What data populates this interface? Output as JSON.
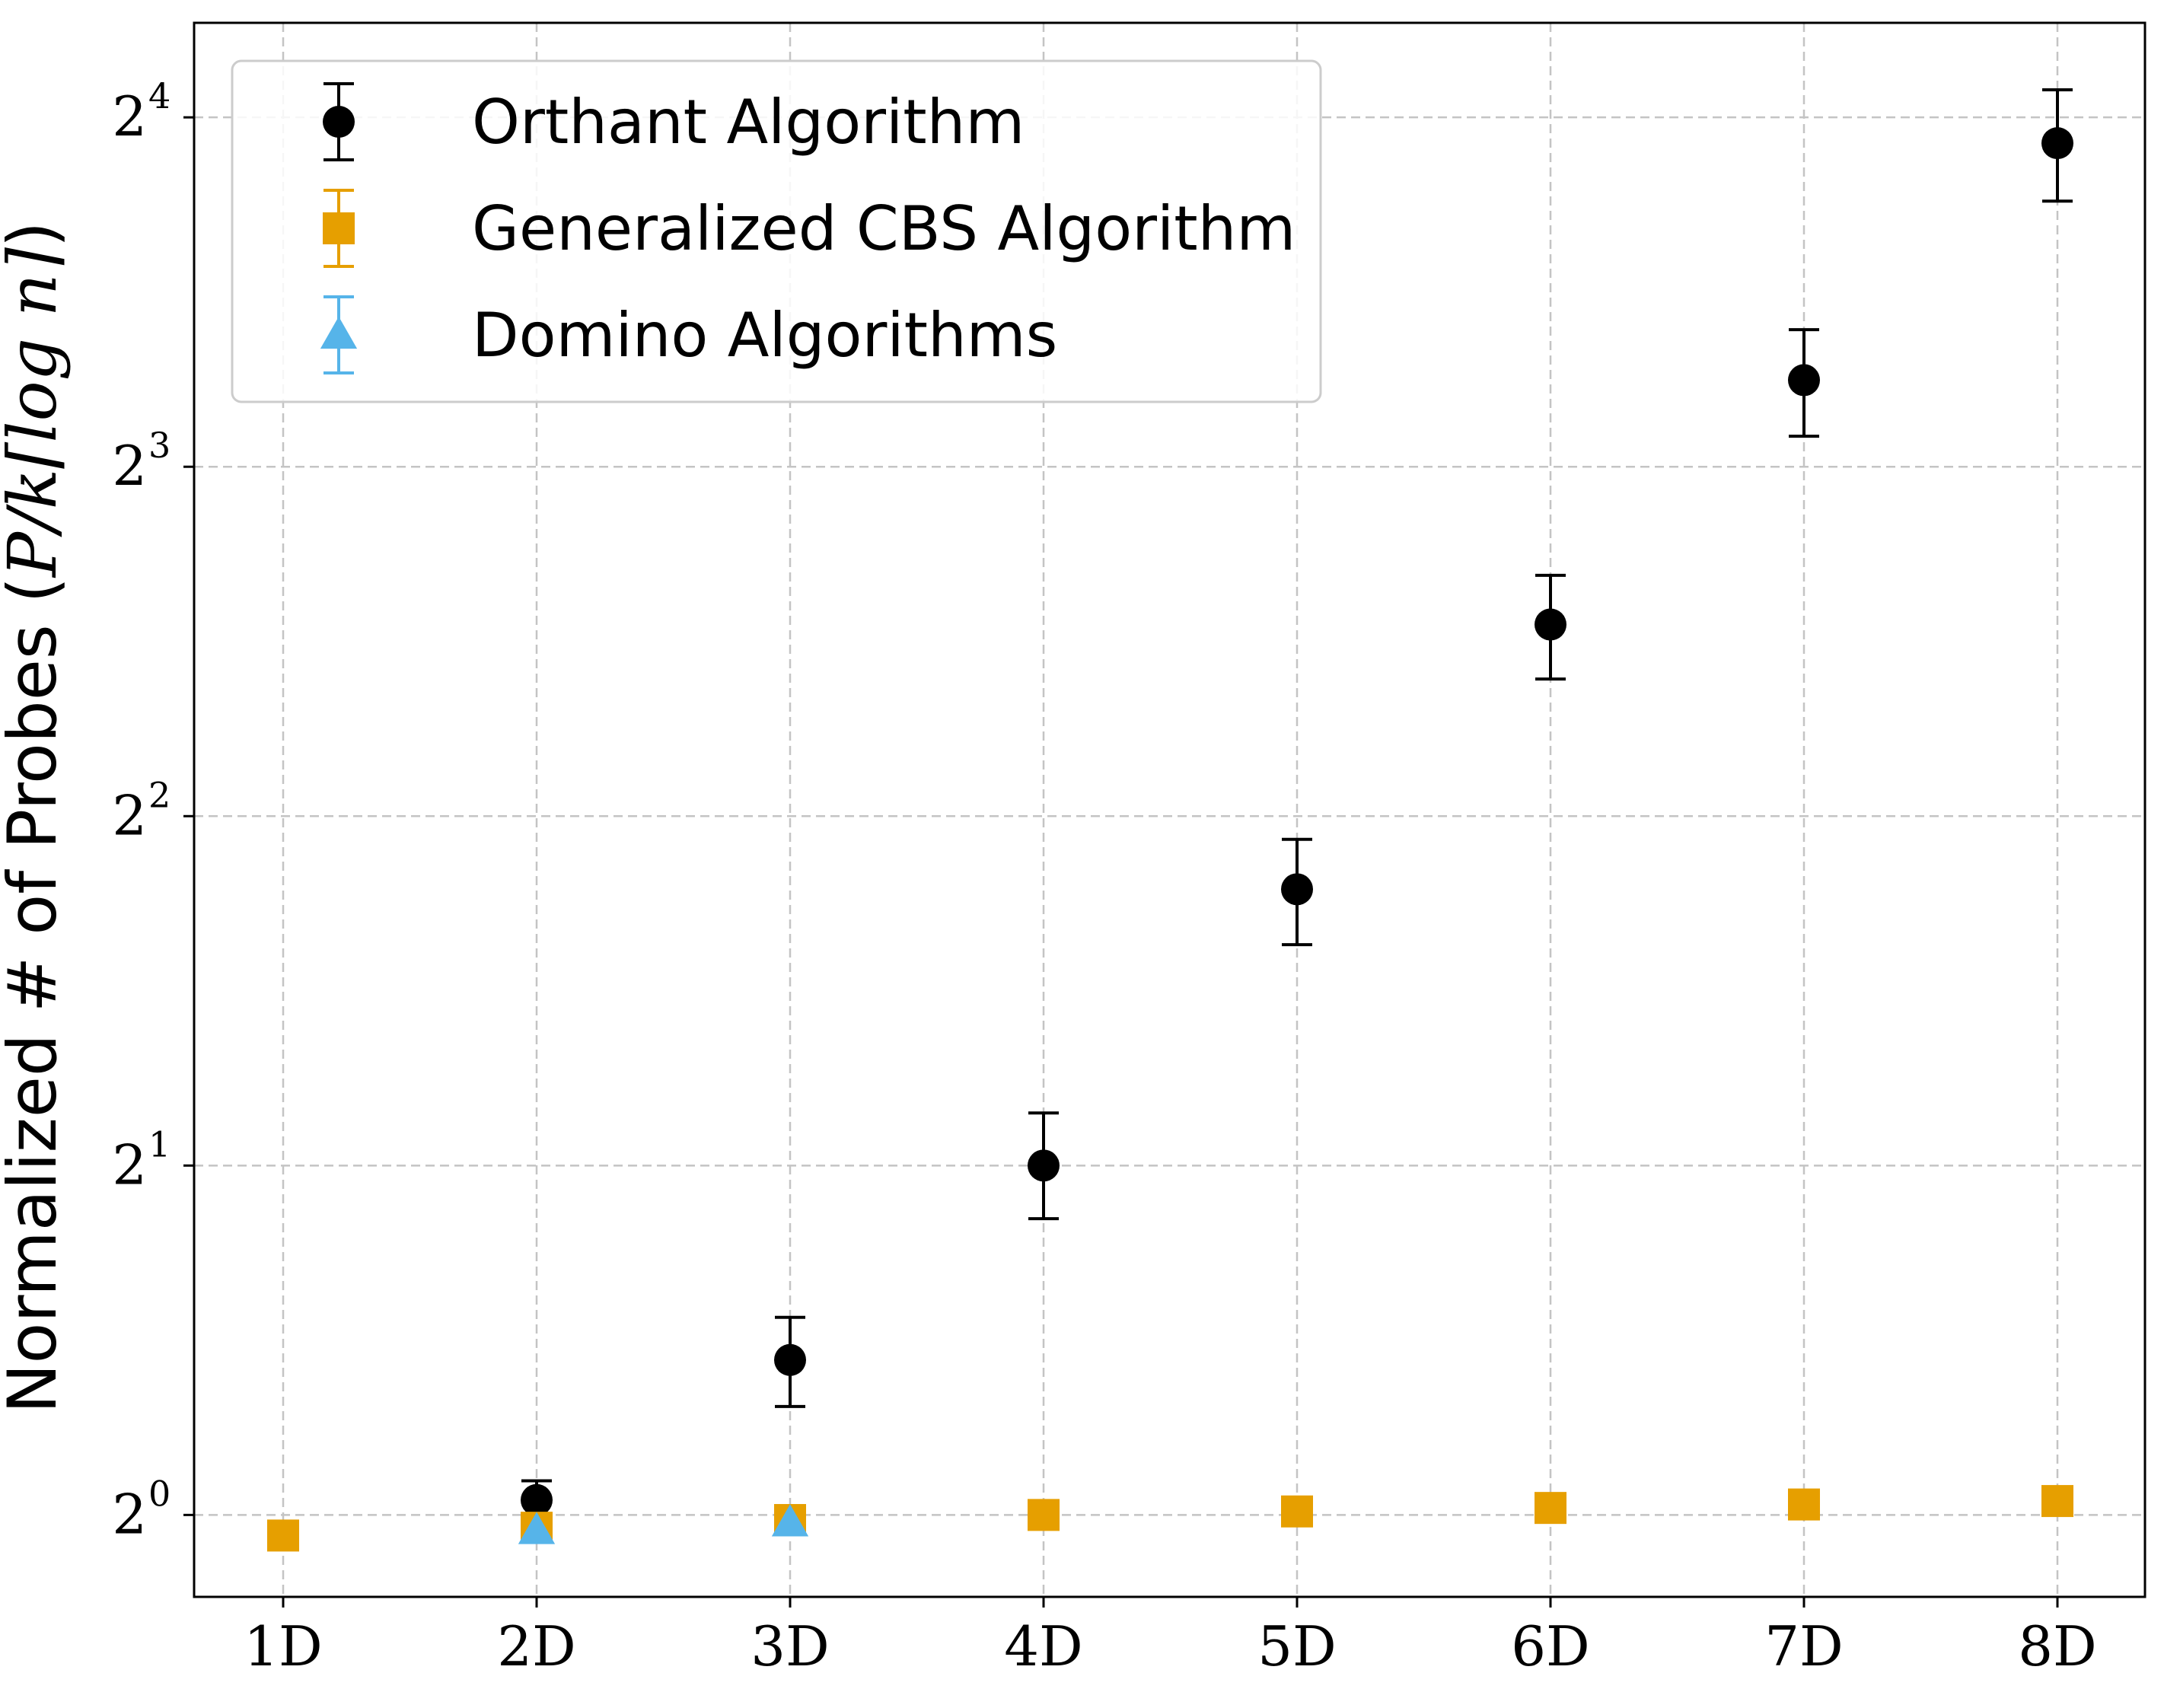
{
  "chart_data": {
    "type": "scatter",
    "title": "",
    "ylabel": {
      "text": "Normalized # of Probes (",
      "math": "P/k⌈log n⌉",
      "close": ")"
    },
    "xlabel": "",
    "categories": [
      "1D",
      "2D",
      "3D",
      "4D",
      "5D",
      "6D",
      "7D",
      "8D"
    ],
    "y_scale": "log2",
    "ylim": [
      0.85,
      19.3
    ],
    "y_ticks": [
      {
        "value": 1,
        "base": "2",
        "exp": "0"
      },
      {
        "value": 2,
        "base": "2",
        "exp": "1"
      },
      {
        "value": 4,
        "base": "2",
        "exp": "2"
      },
      {
        "value": 8,
        "base": "2",
        "exp": "3"
      },
      {
        "value": 16,
        "base": "2",
        "exp": "4"
      }
    ],
    "grid": true,
    "legend_position": "top-left",
    "series": [
      {
        "name": "Orthant Algorithm",
        "marker": "circle",
        "color": "#000000",
        "points": [
          {
            "x": "2D",
            "y": 1.03,
            "err_lo": 0.98,
            "err_hi": 1.07
          },
          {
            "x": "3D",
            "y": 1.36,
            "err_lo": 1.24,
            "err_hi": 1.48
          },
          {
            "x": "4D",
            "y": 2.0,
            "err_lo": 1.8,
            "err_hi": 2.22
          },
          {
            "x": "5D",
            "y": 3.46,
            "err_lo": 3.1,
            "err_hi": 3.82
          },
          {
            "x": "6D",
            "y": 5.85,
            "err_lo": 5.25,
            "err_hi": 6.45
          },
          {
            "x": "7D",
            "y": 9.5,
            "err_lo": 8.5,
            "err_hi": 10.5
          },
          {
            "x": "8D",
            "y": 15.2,
            "err_lo": 13.55,
            "err_hi": 16.9
          }
        ]
      },
      {
        "name": "Generalized CBS Algorithm",
        "marker": "square",
        "color": "#E69F00",
        "points": [
          {
            "x": "1D",
            "y": 0.96
          },
          {
            "x": "2D",
            "y": 0.975
          },
          {
            "x": "3D",
            "y": 0.99
          },
          {
            "x": "4D",
            "y": 1.0
          },
          {
            "x": "5D",
            "y": 1.007
          },
          {
            "x": "6D",
            "y": 1.014
          },
          {
            "x": "7D",
            "y": 1.021
          },
          {
            "x": "8D",
            "y": 1.028
          }
        ]
      },
      {
        "name": "Domino Algorithms",
        "marker": "triangle",
        "color": "#56B4E9",
        "points": [
          {
            "x": "2D",
            "y": 0.97
          },
          {
            "x": "3D",
            "y": 0.985
          }
        ]
      }
    ]
  }
}
